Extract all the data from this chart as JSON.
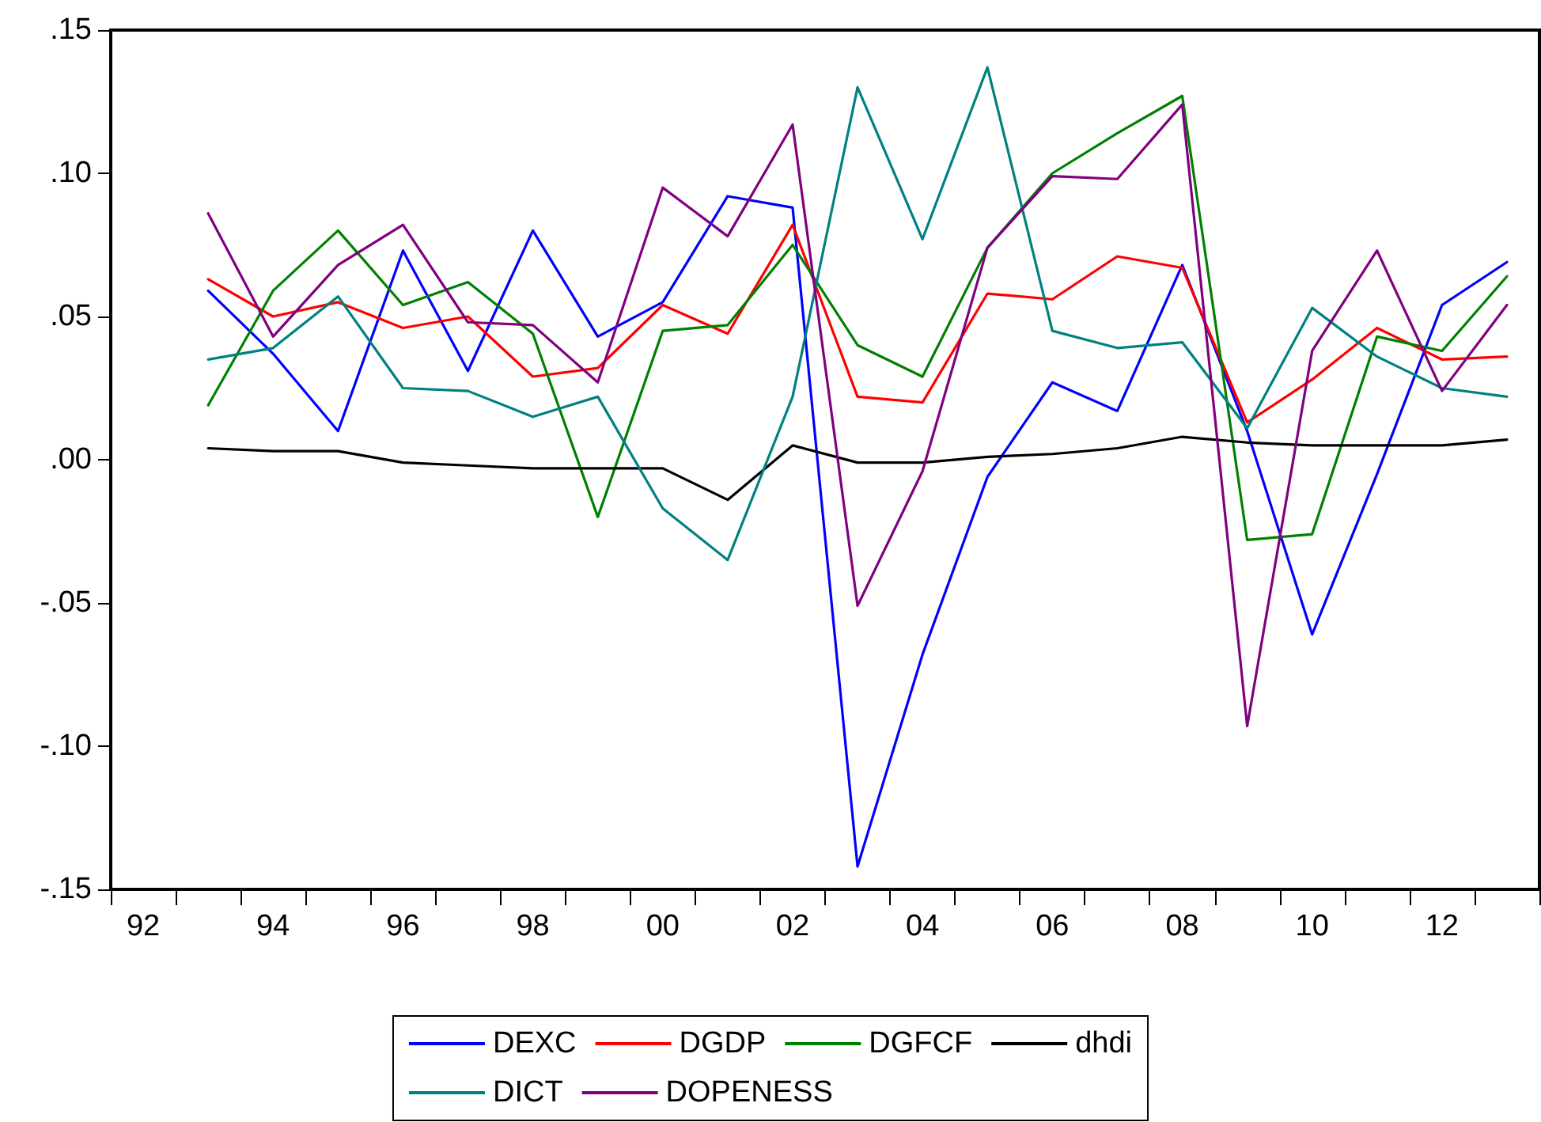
{
  "chart_data": {
    "type": "line",
    "categories": [
      "92",
      null,
      "94",
      null,
      "96",
      null,
      "98",
      null,
      "00",
      null,
      "02",
      null,
      "04",
      null,
      "06",
      null,
      "08",
      null,
      "10",
      null,
      "12",
      null
    ],
    "ylim": [
      -0.15,
      0.15
    ],
    "yticks": [
      {
        "value": -0.15,
        "label": "-.15"
      },
      {
        "value": -0.1,
        "label": "-.10"
      },
      {
        "value": -0.05,
        "label": "-.05"
      },
      {
        "value": 0,
        "label": ".00"
      },
      {
        "value": 0.05,
        "label": ".05"
      },
      {
        "value": 0.1,
        "label": ".10"
      },
      {
        "value": 0.15,
        "label": ".15"
      }
    ],
    "grid": false,
    "legend": "bottom",
    "marker": "none",
    "line_style": "solid",
    "series": [
      {
        "name": "DEXC",
        "color": "#0000ff",
        "values": [
          null,
          0.059,
          0.037,
          0.01,
          0.073,
          0.031,
          0.08,
          0.043,
          0.055,
          0.092,
          0.088,
          -0.142,
          -0.068,
          -0.006,
          0.027,
          0.017,
          0.068,
          0.01,
          -0.061,
          -0.005,
          0.054,
          0.069
        ]
      },
      {
        "name": "DGDP",
        "color": "#ff0000",
        "values": [
          null,
          0.063,
          0.05,
          0.055,
          0.046,
          0.05,
          0.029,
          0.032,
          0.054,
          0.044,
          0.082,
          0.022,
          0.02,
          0.058,
          0.056,
          0.071,
          0.067,
          0.013,
          0.028,
          0.046,
          0.035,
          0.036
        ]
      },
      {
        "name": "DGFCF",
        "color": "#008000",
        "values": [
          null,
          0.019,
          0.059,
          0.08,
          0.054,
          0.062,
          0.044,
          -0.02,
          0.045,
          0.047,
          0.075,
          0.04,
          0.029,
          0.074,
          0.1,
          0.114,
          0.127,
          -0.028,
          -0.026,
          0.043,
          0.038,
          0.064
        ]
      },
      {
        "name": "dhdi",
        "color": "#000000",
        "values": [
          null,
          0.004,
          0.003,
          0.003,
          -0.001,
          -0.002,
          -0.003,
          -0.003,
          -0.003,
          -0.014,
          0.005,
          -0.001,
          -0.001,
          0.001,
          0.002,
          0.004,
          0.008,
          0.006,
          0.005,
          0.005,
          0.005,
          0.007
        ]
      },
      {
        "name": "DICT",
        "color": "#008080",
        "values": [
          null,
          0.035,
          0.039,
          0.057,
          0.025,
          0.024,
          0.015,
          0.022,
          -0.017,
          -0.035,
          0.022,
          0.13,
          0.077,
          0.137,
          0.045,
          0.039,
          0.041,
          0.011,
          0.053,
          0.036,
          0.025,
          0.022
        ]
      },
      {
        "name": "DOPENESS",
        "color": "#800080",
        "values": [
          null,
          0.086,
          0.043,
          0.068,
          0.082,
          0.048,
          0.047,
          0.027,
          0.095,
          0.078,
          0.117,
          -0.051,
          -0.004,
          0.074,
          0.099,
          0.098,
          0.124,
          -0.093,
          0.038,
          0.073,
          0.024,
          0.054
        ]
      }
    ]
  }
}
